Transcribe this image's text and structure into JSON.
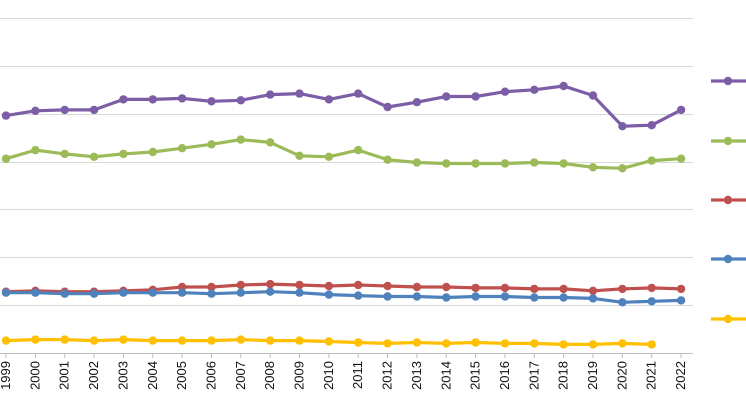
{
  "chart_data": {
    "type": "line",
    "title": "",
    "xlabel": "",
    "ylabel": "",
    "ylim": [
      0,
      350
    ],
    "grid": true,
    "legend_position": "right",
    "categories": [
      "1999",
      "2000",
      "2001",
      "2002",
      "2003",
      "2004",
      "2005",
      "2006",
      "2007",
      "2008",
      "2009",
      "2010",
      "2011",
      "2012",
      "2013",
      "2014",
      "2015",
      "2016",
      "2017",
      "2018",
      "2019",
      "2020",
      "2021",
      "2022"
    ],
    "series": [
      {
        "name": "",
        "color": "#7c5ea6",
        "values": [
          248,
          253,
          254,
          254,
          265,
          265,
          266,
          263,
          264,
          270,
          271,
          265,
          271,
          257,
          262,
          268,
          268,
          273,
          275,
          279,
          269,
          237,
          238,
          254
        ]
      },
      {
        "name": "",
        "color": "#9bbb59",
        "values": [
          203,
          212,
          208,
          205,
          208,
          210,
          214,
          218,
          223,
          220,
          206,
          205,
          212,
          202,
          199,
          198,
          198,
          198,
          199,
          198,
          194,
          193,
          201,
          203
        ]
      },
      {
        "name": "",
        "color": "#c0504d",
        "values": [
          64,
          65,
          64,
          64,
          65,
          66,
          69,
          69,
          71,
          72,
          71,
          70,
          71,
          70,
          69,
          69,
          68,
          68,
          67,
          67,
          65,
          67,
          68,
          67
        ]
      },
      {
        "name": "",
        "color": "#4f81bd",
        "values": [
          63,
          63,
          62,
          62,
          63,
          63,
          63,
          62,
          63,
          64,
          63,
          61,
          60,
          59,
          59,
          58,
          59,
          59,
          58,
          58,
          57,
          53,
          54,
          55
        ]
      },
      {
        "name": "",
        "color": "#ffc000",
        "values": [
          13,
          14,
          14,
          13,
          14,
          13,
          13,
          13,
          14,
          13,
          13,
          12,
          11,
          10,
          11,
          10,
          11,
          10,
          10,
          9,
          9,
          10,
          9,
          null
        ]
      }
    ]
  }
}
